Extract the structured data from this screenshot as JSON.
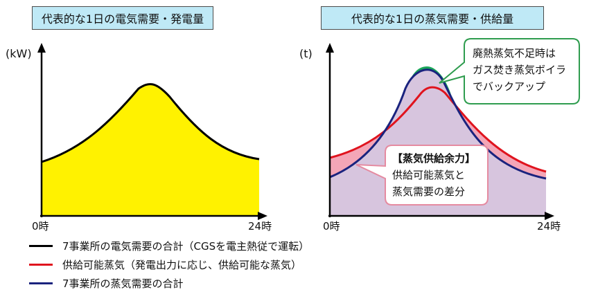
{
  "left_panel": {
    "title": "代表的な1日の電気需要・発電量",
    "y_unit": "(kW)",
    "x_start": "0時",
    "x_end": "24時"
  },
  "right_panel": {
    "title": "代表的な1日の蒸気需要・供給量",
    "y_unit": "(t)",
    "x_start": "0時",
    "x_end": "24時",
    "callout_boiler": [
      "廃熱蒸気不足時は",
      "ガス焚き蒸気ボイラ",
      "でバックアップ"
    ],
    "callout_margin": [
      "【蒸気供給余力】",
      "供給可能蒸気と",
      "蒸気需要の差分"
    ]
  },
  "legend": [
    {
      "label": "7事業所の電気需要の合計（CGSを電主熱従で運転）",
      "color": "#000000"
    },
    {
      "label": "供給可能蒸気（発電出力に応じ、供給可能な蒸気）",
      "color": "#e0141e"
    },
    {
      "label": "7事業所の蒸気需要の合計",
      "color": "#1a237e"
    }
  ],
  "colors": {
    "electric_fill": "#fff200",
    "steam_fill": "#d7c5de",
    "margin_fill": "#f4a6b7",
    "boiler_fill": "#1aa55a",
    "callout_border": "#2e9c4e",
    "title_bg": "#bfe9f6"
  }
}
